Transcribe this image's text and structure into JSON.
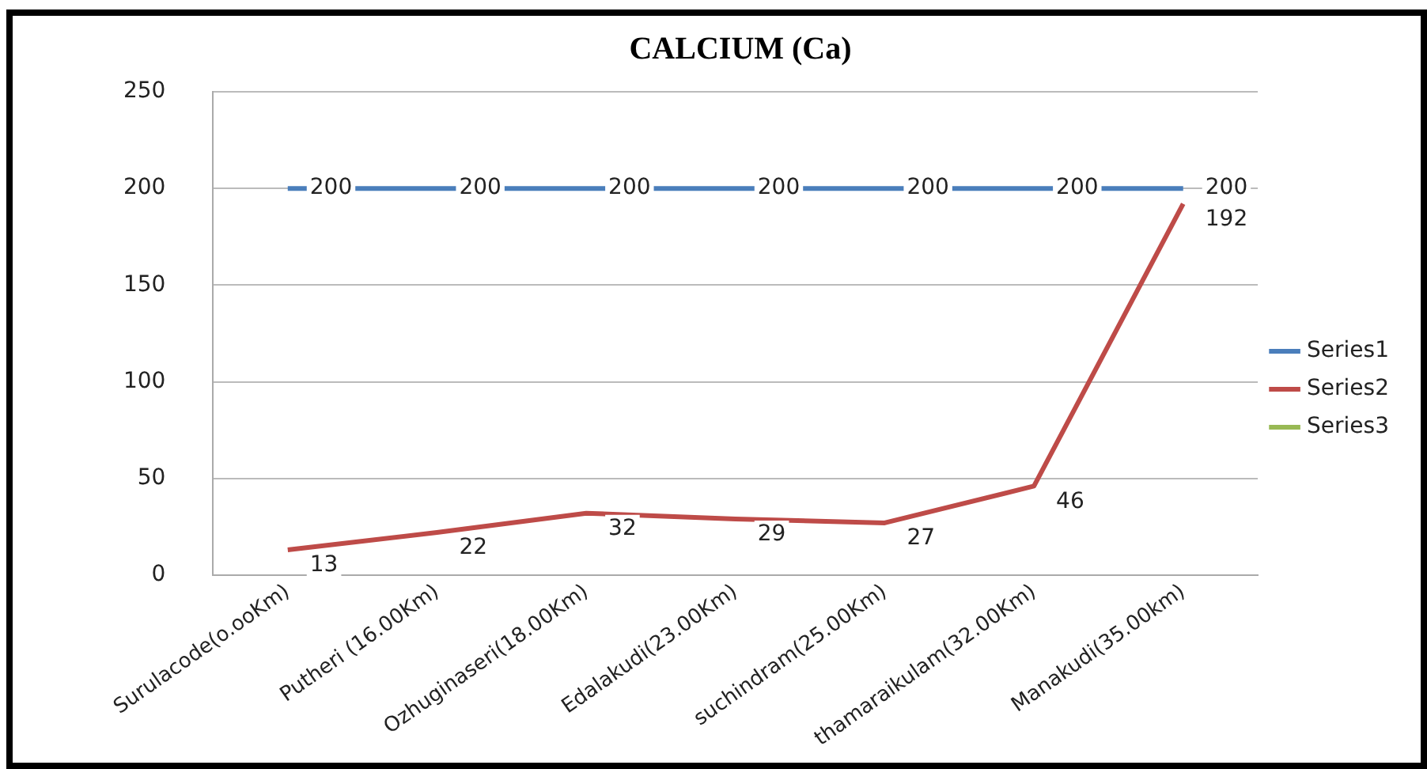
{
  "chart_data": {
    "type": "line",
    "title": "CALCIUM (Ca)",
    "categories": [
      "Surulacode(o.ooKm)",
      "Putheri (16.00Km)",
      "Ozhuginaseri(18.00Km)",
      "Edalakudi(23.00Km)",
      "suchindram(25.00Km)",
      "thamaraikulam(32.00Km)",
      "Manakudi(35.00km)"
    ],
    "series": [
      {
        "name": "Series1",
        "color": "#4a7ebb",
        "values": [
          200,
          200,
          200,
          200,
          200,
          200,
          200
        ]
      },
      {
        "name": "Series2",
        "color": "#be4b48",
        "values": [
          13,
          22,
          32,
          29,
          27,
          46,
          192
        ]
      },
      {
        "name": "Series3",
        "color": "#98b954",
        "values": [
          null,
          null,
          null,
          null,
          null,
          null,
          null
        ]
      }
    ],
    "ylim": [
      0,
      250
    ],
    "yticks": [
      0,
      50,
      100,
      150,
      200,
      250
    ],
    "grid": "y",
    "legend": "right",
    "marker": "none",
    "line_style": "solid",
    "data_labels": true
  }
}
